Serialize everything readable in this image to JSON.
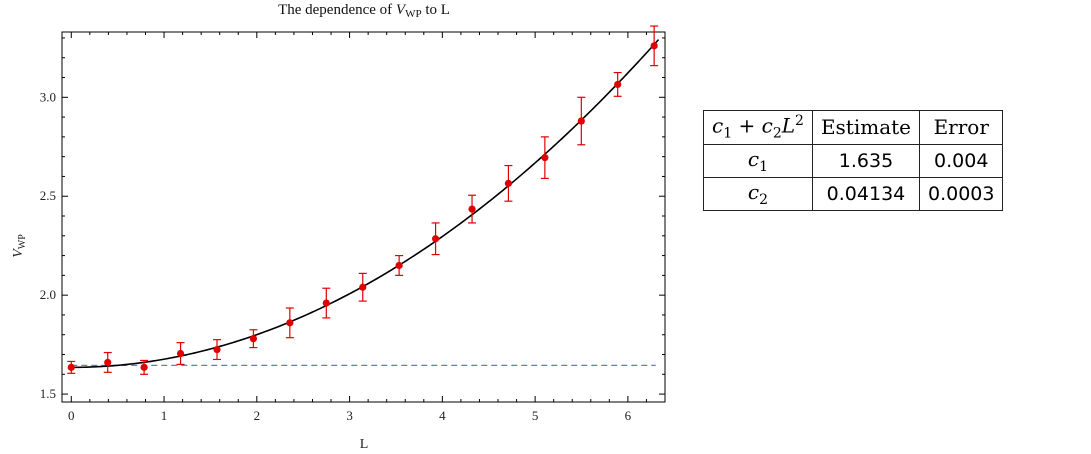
{
  "chart_data": {
    "type": "scatter",
    "title_prefix": "The dependence of ",
    "title_var": "V",
    "title_var_sub": "WP",
    "title_suffix": " to L",
    "xlabel": "L",
    "ylabel_var": "V",
    "ylabel_sub": "WP",
    "xlim": [
      -0.1,
      6.4
    ],
    "ylim": [
      1.46,
      3.33
    ],
    "xticks": [
      0,
      1,
      2,
      3,
      4,
      5,
      6
    ],
    "yticks": [
      1.5,
      2.0,
      2.5,
      3.0
    ],
    "ytick_labels": [
      "1.5",
      "2.0",
      "2.5",
      "3.0"
    ],
    "colors": {
      "points": "#e00000",
      "fit": "#000000",
      "baseline": "#5b7fbf"
    },
    "points": [
      {
        "x": 0.0,
        "y": 1.635,
        "err": 0.03
      },
      {
        "x": 0.393,
        "y": 1.66,
        "err": 0.05
      },
      {
        "x": 0.785,
        "y": 1.635,
        "err": 0.035
      },
      {
        "x": 1.178,
        "y": 1.705,
        "err": 0.055
      },
      {
        "x": 1.571,
        "y": 1.725,
        "err": 0.05
      },
      {
        "x": 1.963,
        "y": 1.78,
        "err": 0.045
      },
      {
        "x": 2.356,
        "y": 1.86,
        "err": 0.075
      },
      {
        "x": 2.749,
        "y": 1.96,
        "err": 0.075
      },
      {
        "x": 3.142,
        "y": 2.04,
        "err": 0.07
      },
      {
        "x": 3.534,
        "y": 2.15,
        "err": 0.05
      },
      {
        "x": 3.927,
        "y": 2.285,
        "err": 0.08
      },
      {
        "x": 4.32,
        "y": 2.435,
        "err": 0.07
      },
      {
        "x": 4.712,
        "y": 2.565,
        "err": 0.09
      },
      {
        "x": 5.105,
        "y": 2.695,
        "err": 0.105
      },
      {
        "x": 5.498,
        "y": 2.88,
        "err": 0.12
      },
      {
        "x": 5.89,
        "y": 3.065,
        "err": 0.06
      },
      {
        "x": 6.283,
        "y": 3.26,
        "err": 0.1
      }
    ],
    "fit": {
      "model": "c1 + c2 L^2",
      "c1": 1.635,
      "c2": 0.04134
    },
    "baseline": 1.645
  },
  "table": {
    "header_estimate": "Estimate",
    "header_error": "Error",
    "rows": [
      {
        "param": "c",
        "sub": "1",
        "estimate": "1.635",
        "error": "0.004"
      },
      {
        "param": "c",
        "sub": "2",
        "estimate": "0.04134",
        "error": "0.0003"
      }
    ]
  }
}
